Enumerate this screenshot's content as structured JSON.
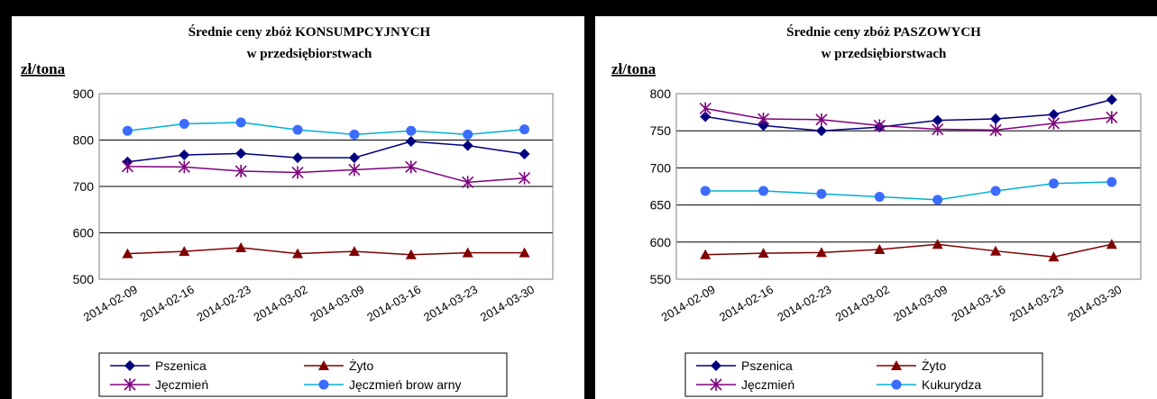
{
  "chart_data": [
    {
      "type": "line",
      "title": "Średnie ceny zbóż KONSUMPCYJNYCH",
      "subtitle": "w przedsiębiorstwach",
      "ylabel": "zł/tona",
      "ylim": [
        500,
        900
      ],
      "yticks": [
        500,
        600,
        700,
        800,
        900
      ],
      "categories": [
        "2014-02-09",
        "2014-02-16",
        "2014-02-23",
        "2014-03-02",
        "2014-03-09",
        "2014-03-16",
        "2014-03-23",
        "2014-03-30"
      ],
      "legend_position": "bottom",
      "series": [
        {
          "name": "Pszenica",
          "color": "#00007f",
          "marker": "diamond",
          "values": [
            753,
            768,
            771,
            762,
            762,
            797,
            788,
            770
          ]
        },
        {
          "name": "Żyto",
          "color": "#7f0000",
          "marker": "triangle",
          "values": [
            555,
            560,
            568,
            555,
            560,
            553,
            557,
            557
          ]
        },
        {
          "name": "Jęczmień",
          "color": "#7f007f",
          "marker": "star",
          "values": [
            743,
            742,
            733,
            730,
            736,
            742,
            709,
            718
          ]
        },
        {
          "name": "Jęczmień brow arny",
          "color": "#00b0d0",
          "marker": "circle",
          "values": [
            820,
            835,
            838,
            822,
            812,
            820,
            812,
            823
          ]
        }
      ]
    },
    {
      "type": "line",
      "title": "Średnie ceny zbóż PASZOWYCH",
      "subtitle": "w przedsiębiorstwach",
      "ylabel": "zł/tona",
      "ylim": [
        550,
        800
      ],
      "yticks": [
        550,
        600,
        650,
        700,
        750,
        800
      ],
      "categories": [
        "2014-02-09",
        "2014-02-16",
        "2014-02-23",
        "2014-03-02",
        "2014-03-09",
        "2014-03-16",
        "2014-03-23",
        "2014-03-30"
      ],
      "legend_position": "bottom",
      "series": [
        {
          "name": "Pszenica",
          "color": "#00007f",
          "marker": "diamond",
          "values": [
            769,
            757,
            750,
            755,
            764,
            766,
            772,
            792
          ]
        },
        {
          "name": "Żyto",
          "color": "#7f0000",
          "marker": "triangle",
          "values": [
            583,
            585,
            586,
            590,
            597,
            588,
            580,
            597
          ]
        },
        {
          "name": "Jęczmień",
          "color": "#7f007f",
          "marker": "star",
          "values": [
            780,
            766,
            765,
            757,
            752,
            751,
            760,
            768
          ]
        },
        {
          "name": "Kukurydza",
          "color": "#00b0d0",
          "marker": "circle",
          "values": [
            669,
            669,
            665,
            661,
            657,
            669,
            679,
            681
          ]
        }
      ]
    }
  ]
}
